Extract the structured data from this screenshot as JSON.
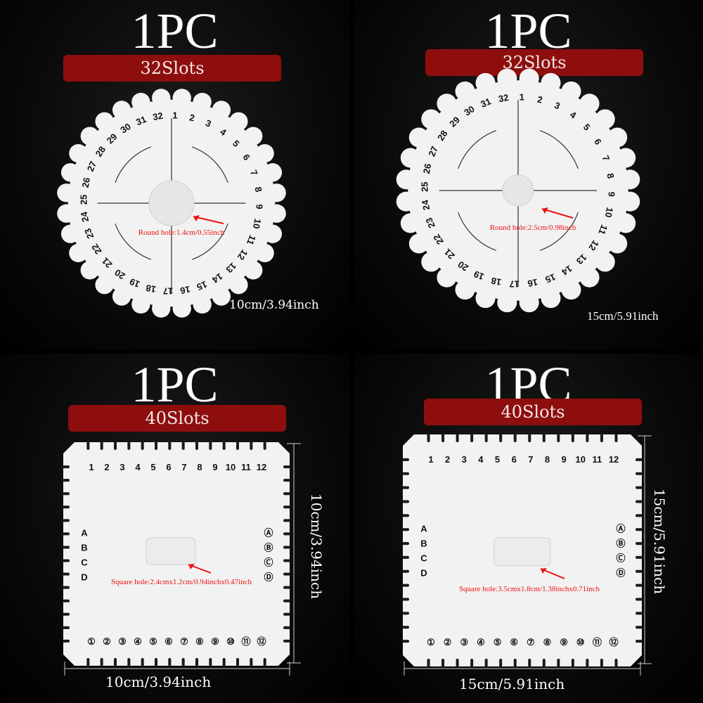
{
  "panels": [
    {
      "quantity": "1PC",
      "slots": "32Slots",
      "hole_note": "Round hole:1.4cm/0.55inch",
      "size": "10cm/3.94inch"
    },
    {
      "quantity": "1PC",
      "slots": "32Slots",
      "hole_note": "Round hole:2.5cm/0.98inch",
      "size": "15cm/5.91inch"
    },
    {
      "quantity": "1PC",
      "slots": "40Slots",
      "hole_note": "Square hole:2.4cmx1.2cm/0.94inchx0.47inch",
      "size": "10cm/3.94inch",
      "height": "10cm/3.94inch"
    },
    {
      "quantity": "1PC",
      "slots": "40Slots",
      "hole_note": "Square hole:3.5cmx1.8cm/1.38inchx0.71inch",
      "size": "15cm/5.91inch",
      "height": "15cm/5.91inch"
    }
  ],
  "colors": {
    "banner": "#8e0e0e",
    "disk": "#f2f2f2",
    "note": "#e11111",
    "background": "#000000"
  },
  "round_labels": [
    "1",
    "2",
    "3",
    "4",
    "5",
    "6",
    "7",
    "8",
    "9",
    "10",
    "11",
    "12",
    "13",
    "14",
    "15",
    "16",
    "17",
    "18",
    "19",
    "20",
    "21",
    "22",
    "23",
    "24",
    "25",
    "26",
    "27",
    "28",
    "29",
    "30",
    "31",
    "32"
  ],
  "square_top_labels": [
    "1",
    "2",
    "3",
    "4",
    "5",
    "6",
    "7",
    "8",
    "9",
    "10",
    "11",
    "12"
  ],
  "square_bottom_labels": [
    "①",
    "②",
    "③",
    "④",
    "⑤",
    "⑥",
    "⑦",
    "⑧",
    "⑨",
    "⑩",
    "⑪",
    "⑫"
  ],
  "square_left_labels": [
    "A",
    "B",
    "C",
    "D"
  ],
  "square_right_labels": [
    "Ⓐ",
    "Ⓑ",
    "Ⓒ",
    "Ⓓ"
  ]
}
